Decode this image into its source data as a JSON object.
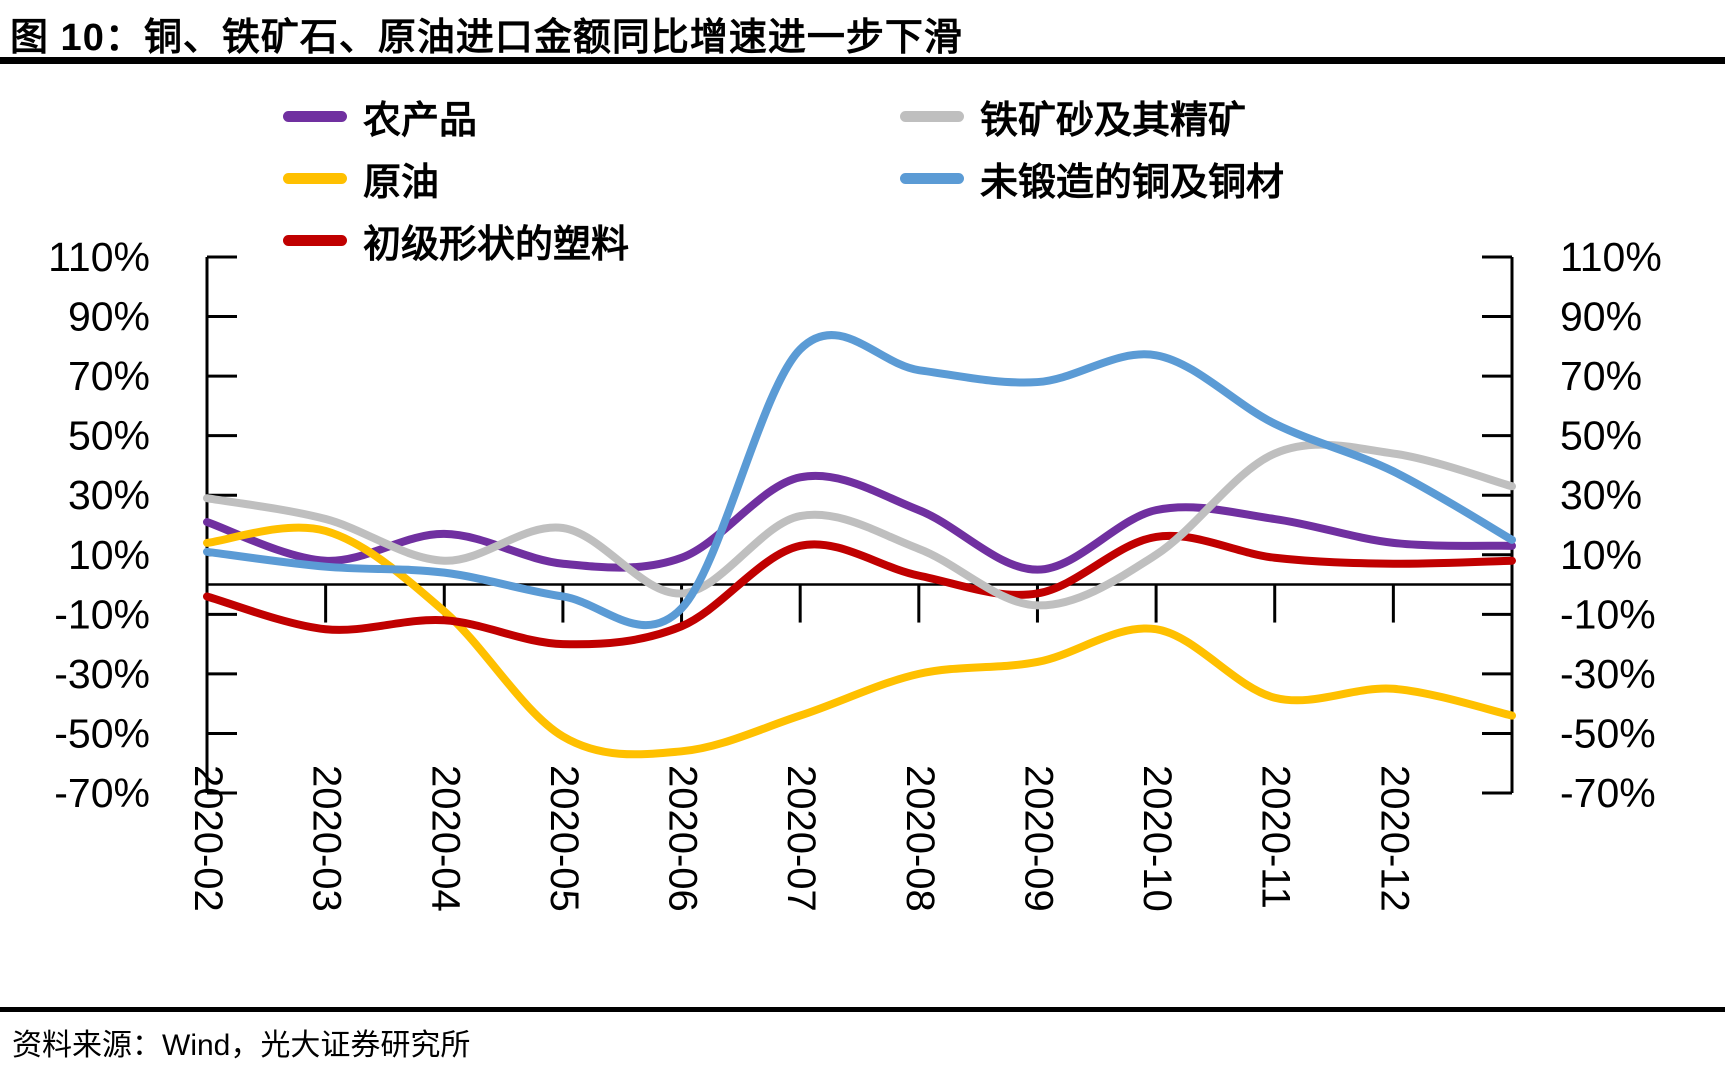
{
  "title": "图 10：铜、铁矿石、原油进口金额同比增速进一步下滑",
  "footer": {
    "source": "资料来源：Wind，光大证券研究所"
  },
  "chart_data": {
    "type": "line",
    "title": "铜、铁矿石、原油进口金额同比增速进一步下滑",
    "x_labels": [
      "2020-02",
      "2020-03",
      "2020-04",
      "2020-05",
      "2020-06",
      "2020-07",
      "2020-08",
      "2020-09",
      "2020-10",
      "2020-11",
      "2020-12"
    ],
    "x_points_total": 12,
    "x_note": "curves extend one unlabeled month beyond 2020-12 to reach the right axis",
    "ylim": [
      -70,
      110
    ],
    "y_tick_labels": [
      "110%",
      "90%",
      "70%",
      "50%",
      "30%",
      "10%",
      "-10%",
      "-30%",
      "-50%",
      "-70%"
    ],
    "y_axis_sides": [
      "left",
      "right"
    ],
    "grid": false,
    "legend_position": "top",
    "axis_color": "#000000",
    "series": [
      {
        "id": "agricultural-products",
        "label": "农产品",
        "color": "#7030a0",
        "values": [
          21,
          8,
          17,
          7,
          9,
          36,
          25,
          5,
          25,
          22,
          14,
          13
        ]
      },
      {
        "id": "crude-oil",
        "label": "原油",
        "color": "#ffc000",
        "values": [
          14,
          18,
          -9,
          -51,
          -56,
          -44,
          -30,
          -26,
          -15,
          -38,
          -35,
          -44
        ]
      },
      {
        "id": "primary-form-plastics",
        "label": "初级形状的塑料",
        "color": "#c00000",
        "values": [
          -4,
          -15,
          -12,
          -20,
          -14,
          13,
          3,
          -3,
          16,
          9,
          7,
          8
        ]
      },
      {
        "id": "iron-ore-concentrates",
        "label": "铁矿砂及其精矿",
        "color": "#bfbfbf",
        "values": [
          29,
          22,
          8,
          19,
          -3,
          23,
          12,
          -7,
          10,
          44,
          44,
          33
        ]
      },
      {
        "id": "unwrought-copper",
        "label": "未锻造的铜及铜材",
        "color": "#5b9bd5",
        "values": [
          11,
          6,
          4,
          -4,
          -8,
          79,
          72,
          68,
          77,
          54,
          38,
          15
        ]
      }
    ],
    "legend_columns": [
      [
        "agricultural-products",
        "crude-oil",
        "primary-form-plastics"
      ],
      [
        "iron-ore-concentrates",
        "unwrought-copper"
      ]
    ]
  }
}
